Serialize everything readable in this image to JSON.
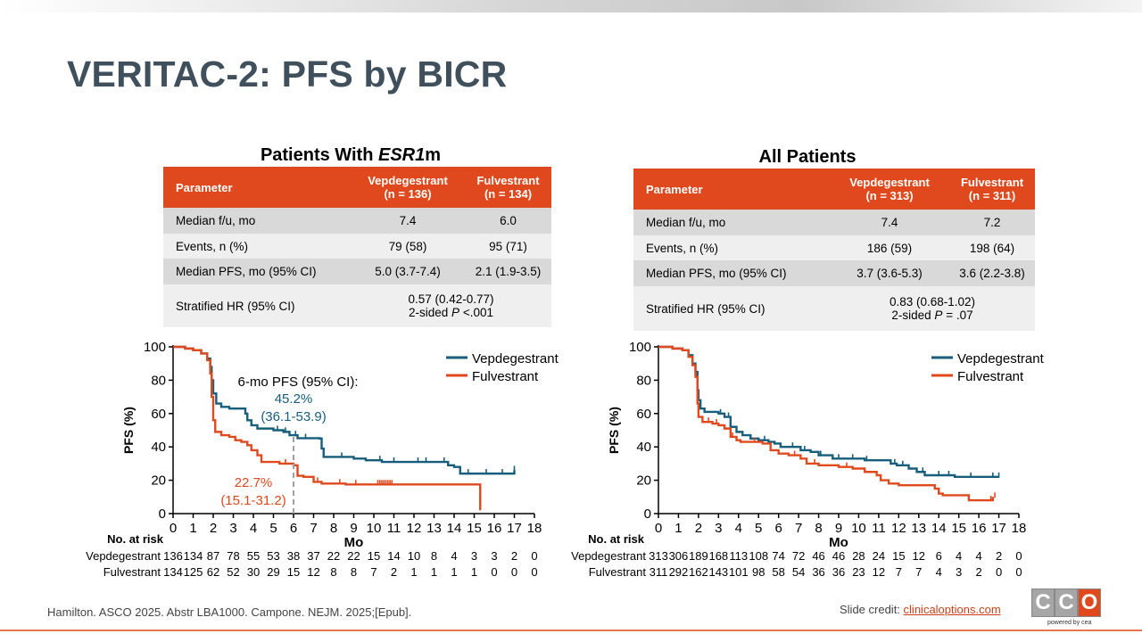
{
  "slide": {
    "title": "VERITAC-2: PFS by BICR",
    "citation": "Hamilton. ASCO 2025. Abstr LBA1000. Campone. NEJM. 2025;[Epub].",
    "credit_prefix": "Slide credit: ",
    "credit_link": "clinicaloptions.com",
    "logo": {
      "letters": [
        "C",
        "C",
        "O"
      ],
      "tagline": "powered by cea",
      "colors": [
        "#a6a6a6",
        "#a6a6a6",
        "#e0491d"
      ]
    }
  },
  "colors": {
    "vepdegestrant": "#165e7c",
    "fulvestrant": "#e0491d",
    "table_header": "#e0491d",
    "title": "#3f505c"
  },
  "panels": [
    {
      "heading_plain": "Patients With ",
      "heading_italic": "ESR1",
      "heading_suffix": "m",
      "table": {
        "headers": [
          {
            "line1": "Parameter",
            "line2": ""
          },
          {
            "line1": "Vepdegestrant",
            "line2": "(n = 136)"
          },
          {
            "line1": "Fulvestrant",
            "line2": "(n = 134)"
          }
        ],
        "rows": [
          {
            "label": "Median f/u, mo",
            "v": "7.4",
            "f": "6.0"
          },
          {
            "label": "Events, n (%)",
            "v": "79 (58)",
            "f": "95 (71)"
          },
          {
            "label": "Median PFS, mo (95% CI)",
            "v": "5.0 (3.7-7.4)",
            "f": "2.1 (1.9-3.5)"
          }
        ],
        "hr": {
          "label": "Stratified HR (95% CI)",
          "line1": "0.57 (0.42-0.77)",
          "line2_pre": "2-sided ",
          "line2_p": "P",
          "line2_post": " <.001"
        }
      }
    },
    {
      "heading_plain": "All Patients",
      "heading_italic": "",
      "heading_suffix": "",
      "table": {
        "headers": [
          {
            "line1": "Parameter",
            "line2": ""
          },
          {
            "line1": "Vepdegestrant",
            "line2": "(n = 313)"
          },
          {
            "line1": "Fulvestrant",
            "line2": "(n = 311)"
          }
        ],
        "rows": [
          {
            "label": "Median f/u, mo",
            "v": "7.4",
            "f": "7.2"
          },
          {
            "label": "Events, n (%)",
            "v": "186 (59)",
            "f": "198 (64)"
          },
          {
            "label": "Median PFS, mo (95% CI)",
            "v": "3.7 (3.6-5.3)",
            "f": "3.6 (2.2-3.8)"
          }
        ],
        "hr": {
          "label": "Stratified HR (95% CI)",
          "line1": "0.83 (0.68-1.02)",
          "line2_pre": "2-sided ",
          "line2_p": "P",
          "line2_post": " = .07"
        }
      }
    }
  ],
  "chart_data": [
    {
      "type": "line",
      "subtype": "kaplan-meier step",
      "xlabel": "Mo",
      "ylabel": "PFS (%)",
      "xlim": [
        0,
        18
      ],
      "ylim": [
        0,
        100
      ],
      "xticks": [
        0,
        1,
        2,
        3,
        4,
        5,
        6,
        7,
        8,
        9,
        10,
        11,
        12,
        13,
        14,
        15,
        16,
        17,
        18
      ],
      "yticks": [
        0,
        20,
        40,
        60,
        80,
        100
      ],
      "legend_position": "top-right",
      "series": [
        {
          "name": "Vepdegestrant",
          "color": "#165e7c",
          "points": [
            [
              0,
              100
            ],
            [
              0.6,
              99
            ],
            [
              1,
              98
            ],
            [
              1.4,
              96
            ],
            [
              1.7,
              93
            ],
            [
              1.85,
              88
            ],
            [
              1.92,
              80
            ],
            [
              2.0,
              72
            ],
            [
              2.15,
              66
            ],
            [
              2.4,
              64
            ],
            [
              2.8,
              63
            ],
            [
              3.6,
              60
            ],
            [
              3.7,
              56
            ],
            [
              3.9,
              53
            ],
            [
              4.2,
              51
            ],
            [
              5.0,
              50
            ],
            [
              5.5,
              49
            ],
            [
              5.8,
              47
            ],
            [
              6.2,
              45.2
            ],
            [
              7.3,
              45
            ],
            [
              7.4,
              39
            ],
            [
              7.5,
              34
            ],
            [
              9.0,
              33
            ],
            [
              9.6,
              32
            ],
            [
              10.4,
              31
            ],
            [
              11.2,
              31
            ],
            [
              12.6,
              31
            ],
            [
              13.7,
              29
            ],
            [
              14.0,
              28
            ],
            [
              14.3,
              24
            ],
            [
              16.0,
              24
            ],
            [
              17.0,
              24
            ],
            [
              17.0,
              26
            ]
          ],
          "censor_x": [
            5.2,
            5.6,
            6.1,
            6.6,
            8.4,
            10.3,
            11.0,
            12.2,
            12.6,
            13.5,
            14.7,
            15.6,
            16.4,
            17.0
          ],
          "annotation": {
            "x": 6,
            "value_label": "45.2%",
            "ci_label": "(36.1-53.9)"
          }
        },
        {
          "name": "Fulvestrant",
          "color": "#e0491d",
          "points": [
            [
              0,
              100
            ],
            [
              0.6,
              99
            ],
            [
              1,
              98
            ],
            [
              1.4,
              96
            ],
            [
              1.7,
              92
            ],
            [
              1.85,
              84
            ],
            [
              1.92,
              70
            ],
            [
              2.0,
              56
            ],
            [
              2.1,
              49
            ],
            [
              2.4,
              47
            ],
            [
              2.8,
              46
            ],
            [
              3.1,
              44
            ],
            [
              3.4,
              43
            ],
            [
              3.7,
              41
            ],
            [
              3.9,
              38
            ],
            [
              4.2,
              35
            ],
            [
              4.4,
              31
            ],
            [
              5.3,
              30
            ],
            [
              6.0,
              29
            ],
            [
              6.2,
              22.7
            ],
            [
              6.5,
              22
            ],
            [
              7.0,
              19
            ],
            [
              7.4,
              18
            ],
            [
              8.6,
              17.5
            ],
            [
              15.3,
              17.5
            ],
            [
              15.3,
              2
            ]
          ],
          "censor_x": [
            5.6,
            7.2,
            8.3,
            9.1,
            10.2,
            10.3,
            10.4,
            10.5,
            10.6,
            10.7,
            10.8,
            10.9
          ],
          "annotation": {
            "x": 6,
            "value_label": "22.7%",
            "ci_label": "(15.1-31.2)"
          }
        }
      ],
      "annotation_title": "6-mo PFS (95% CI):",
      "at_risk": {
        "title": "No. at risk",
        "rows": [
          {
            "name": "Vepdegestrant",
            "values": [
              "136",
              "134",
              "87",
              "78",
              "55",
              "53",
              "38",
              "37",
              "22",
              "22",
              "15",
              "14",
              "10",
              "8",
              "4",
              "3",
              "3",
              "2",
              "0"
            ]
          },
          {
            "name": "Fulvestrant",
            "values": [
              "134",
              "125",
              "62",
              "52",
              "30",
              "29",
              "15",
              "12",
              "8",
              "8",
              "7",
              "2",
              "1",
              "1",
              "1",
              "1",
              "0",
              "0",
              "0"
            ]
          }
        ]
      }
    },
    {
      "type": "line",
      "subtype": "kaplan-meier step",
      "xlabel": "Mo",
      "ylabel": "PFS (%)",
      "xlim": [
        0,
        18
      ],
      "ylim": [
        0,
        100
      ],
      "xticks": [
        0,
        1,
        2,
        3,
        4,
        5,
        6,
        7,
        8,
        9,
        10,
        11,
        12,
        13,
        14,
        15,
        16,
        17,
        18
      ],
      "yticks": [
        0,
        20,
        40,
        60,
        80,
        100
      ],
      "legend_position": "top-right",
      "series": [
        {
          "name": "Vepdegestrant",
          "color": "#165e7c",
          "points": [
            [
              0,
              100
            ],
            [
              0.7,
              99
            ],
            [
              1.2,
              98
            ],
            [
              1.5,
              95
            ],
            [
              1.7,
              90
            ],
            [
              1.85,
              85
            ],
            [
              1.95,
              74
            ],
            [
              2.0,
              68
            ],
            [
              2.1,
              63
            ],
            [
              2.3,
              61
            ],
            [
              2.9,
              61
            ],
            [
              3.0,
              60
            ],
            [
              3.3,
              58
            ],
            [
              3.6,
              52
            ],
            [
              3.9,
              49
            ],
            [
              4.2,
              47
            ],
            [
              4.6,
              45
            ],
            [
              5.0,
              44
            ],
            [
              5.5,
              43
            ],
            [
              5.8,
              42
            ],
            [
              6.1,
              40
            ],
            [
              7.0,
              40
            ],
            [
              7.1,
              38
            ],
            [
              7.6,
              37
            ],
            [
              8.0,
              35
            ],
            [
              8.7,
              33
            ],
            [
              9.5,
              33
            ],
            [
              10.3,
              32
            ],
            [
              11.2,
              32
            ],
            [
              11.6,
              30
            ],
            [
              11.9,
              29
            ],
            [
              12.5,
              27
            ],
            [
              12.9,
              25
            ],
            [
              13.3,
              23
            ],
            [
              14.5,
              23
            ],
            [
              14.8,
              22
            ],
            [
              17.0,
              22
            ]
          ],
          "censor_x": [
            3.1,
            3.5,
            5.3,
            6.7,
            7.3,
            8.1,
            9.0,
            9.7,
            10.4,
            11.8,
            12.2,
            13.2,
            14.0,
            14.5,
            15.6,
            16.7,
            17.0
          ]
        },
        {
          "name": "Fulvestrant",
          "color": "#e0491d",
          "points": [
            [
              0,
              100
            ],
            [
              0.7,
              99
            ],
            [
              1.2,
              98
            ],
            [
              1.5,
              94
            ],
            [
              1.7,
              89
            ],
            [
              1.85,
              82
            ],
            [
              1.95,
              66
            ],
            [
              2.0,
              58
            ],
            [
              2.2,
              55
            ],
            [
              2.7,
              54
            ],
            [
              3.0,
              53
            ],
            [
              3.3,
              51
            ],
            [
              3.6,
              46
            ],
            [
              3.9,
              44
            ],
            [
              4.1,
              43
            ],
            [
              5.2,
              42
            ],
            [
              5.6,
              38
            ],
            [
              6.0,
              36
            ],
            [
              6.5,
              35
            ],
            [
              7.1,
              33
            ],
            [
              7.4,
              30
            ],
            [
              8.0,
              29
            ],
            [
              9.0,
              28
            ],
            [
              9.7,
              27
            ],
            [
              10.3,
              25
            ],
            [
              10.9,
              23
            ],
            [
              11.1,
              20
            ],
            [
              11.5,
              18
            ],
            [
              12.0,
              17
            ],
            [
              13.5,
              17
            ],
            [
              13.8,
              15
            ],
            [
              14.0,
              12
            ],
            [
              14.2,
              11
            ],
            [
              15.3,
              11
            ],
            [
              15.5,
              8
            ],
            [
              16.5,
              8
            ],
            [
              16.7,
              10
            ]
          ],
          "censor_x": [
            2.5,
            2.9,
            3.7,
            4.8,
            6.8,
            7.8,
            9.4,
            14.0,
            16.6,
            16.8
          ]
        }
      ],
      "at_risk": {
        "title": "No. at risk",
        "rows": [
          {
            "name": "Vepdegestrant",
            "values": [
              "313",
              "306",
              "189",
              "168",
              "113",
              "108",
              "74",
              "72",
              "46",
              "46",
              "28",
              "24",
              "15",
              "12",
              "6",
              "4",
              "4",
              "2",
              "0"
            ]
          },
          {
            "name": "Fulvestrant",
            "values": [
              "311",
              "292",
              "162",
              "143",
              "101",
              "98",
              "58",
              "54",
              "36",
              "36",
              "23",
              "12",
              "7",
              "7",
              "4",
              "3",
              "2",
              "0",
              "0"
            ]
          }
        ]
      }
    }
  ]
}
